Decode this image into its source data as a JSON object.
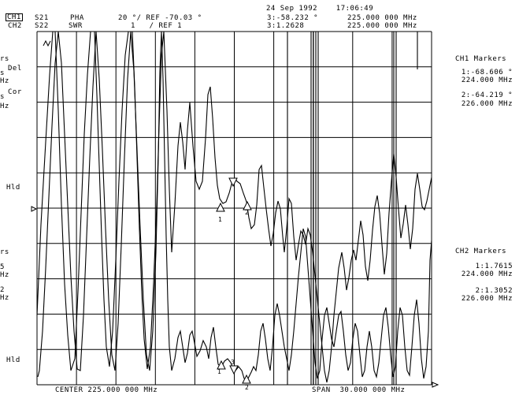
{
  "header": {
    "date_time": "24 Sep 1992    17:06:49",
    "ch1": {
      "channel": "CH1",
      "param": "S21",
      "format": "PHA",
      "scale": "20 °/ REF -70.03 °",
      "marker_value": "3:-58.232 °",
      "marker_freq": "225.000 000 MHz"
    },
    "ch2": {
      "channel": "CH2",
      "param": "S22",
      "format": "SWR",
      "scale": "1   / REF 1",
      "marker_value": "3:1.2628",
      "marker_freq": "225.000 000 MHz"
    }
  },
  "left_panel": {
    "upper": {
      "l1": "rs",
      "l2": "Del",
      "l3": "s",
      "l4": "Hz",
      "l5": "Cor",
      "l6": "s",
      "l7": "Hz",
      "hold": "Hld"
    },
    "lower": {
      "l1": "rs",
      "l2": "5",
      "l3": "Hz",
      "l4": "2",
      "l5": "Hz",
      "hold": "Hld"
    }
  },
  "ch1_markers": {
    "title": "CH1 Markers",
    "m1_value": "1:-68.606 °",
    "m1_freq": "224.000 MHz",
    "m2_value": "2:-64.219 °",
    "m2_freq": "226.000 MHz"
  },
  "ch2_markers": {
    "title": "CH2 Markers",
    "m1_value": "1:1.7615",
    "m1_freq": "224.000 MHz",
    "m2_value": "2:1.3052",
    "m2_freq": "226.000 MHz"
  },
  "footer": {
    "center": "CENTER 225.000 000 MHz",
    "span": "SPAN  30.000 000 MHz"
  },
  "plot": {
    "trace_color": "#000000",
    "marker_labels_ch1": [
      "1",
      "2"
    ],
    "marker_labels_ch2": [
      "1",
      "3",
      "2"
    ]
  }
}
